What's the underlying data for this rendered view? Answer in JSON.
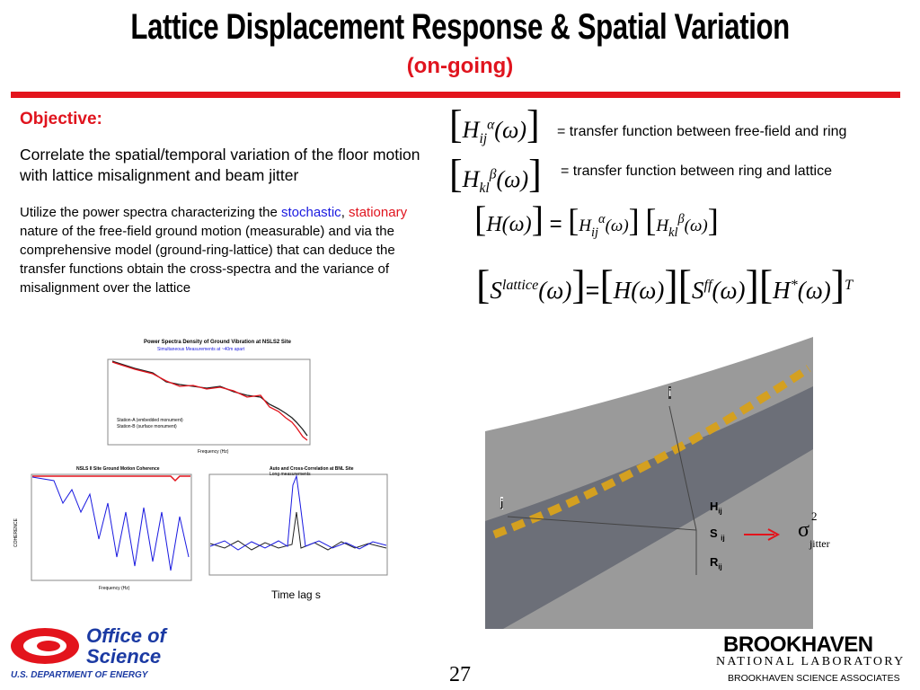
{
  "header": {
    "title": "Lattice Displacement Response & Spatial Variation",
    "subtitle": "(on-going)"
  },
  "objective": {
    "heading": "Objective:",
    "text": "Correlate the spatial/temporal variation of the floor motion with lattice misalignment and beam jitter"
  },
  "body": {
    "parts": [
      "Utilize the power spectra characterizing the ",
      "stochastic",
      ", ",
      "stationary",
      " nature of the free-field ground motion (measurable) and via the comprehensive model (ground-ring-lattice) that can deduce the transfer functions obtain the cross-spectra and the variance of misalignment over the lattice"
    ]
  },
  "equations": {
    "eq1": {
      "symbol": "H",
      "sub": "ij",
      "sup": "α",
      "arg": "(ω)",
      "desc": "= transfer function between free-field and ring"
    },
    "eq2": {
      "symbol": "H",
      "sub": "kl",
      "sup": "β",
      "arg": "(ω)",
      "desc": "= transfer function between ring and lattice"
    },
    "eq3": {
      "lhs": "H",
      "arg": "(ω)",
      "eq": "=",
      "h1": "H",
      "h1sub": "ij",
      "h1sup": "α",
      "h2": "H",
      "h2sub": "kl",
      "h2sup": "β"
    },
    "eq4": {
      "lhs": "S",
      "lhssup": "lattice",
      "arg": "(ω)",
      "eq": "=",
      "h": "H",
      "s": "S",
      "ssup": "ff",
      "hs": "H",
      "hssup": "*",
      "t": "T"
    }
  },
  "figures": {
    "psd_title": "Power Spectra Density of Ground Vibration at NSLS2 Site",
    "psd_subtitle": "Simultaneous Measurements at ~40m apart",
    "psd_legend": [
      "Station-A (embedded monument)",
      "Station-B (surface monument)"
    ],
    "psd_xlabel": "Frequency (Hz)",
    "coh_title": "NSLS II Site Ground Motion Coherence",
    "coh_xlabel": "Frequency (Hz)",
    "coh_ylabel": "COHERENCE",
    "corr_title": "Auto and Cross-Correlation at BNL Site",
    "corr_subtitle": "Long measurements",
    "time_lag": "Time lag s"
  },
  "diagram": {
    "i": "i",
    "j": "j",
    "h": "H",
    "h_sub": "ij",
    "s": "S",
    "s_sub": "ij",
    "r": "R",
    "r_sub": "ij",
    "sigma": "σ",
    "sigma_sup": "2",
    "sigma_sub": "jitter"
  },
  "footer": {
    "office1": "Office of",
    "office2": "Science",
    "doe": "U.S. DEPARTMENT OF ENERGY",
    "page": "27",
    "bnl": "BROOKHAVEN",
    "bnl_sub": "NATIONAL LABORATORY",
    "bsa": "BROOKHAVEN SCIENCE ASSOCIATES"
  }
}
